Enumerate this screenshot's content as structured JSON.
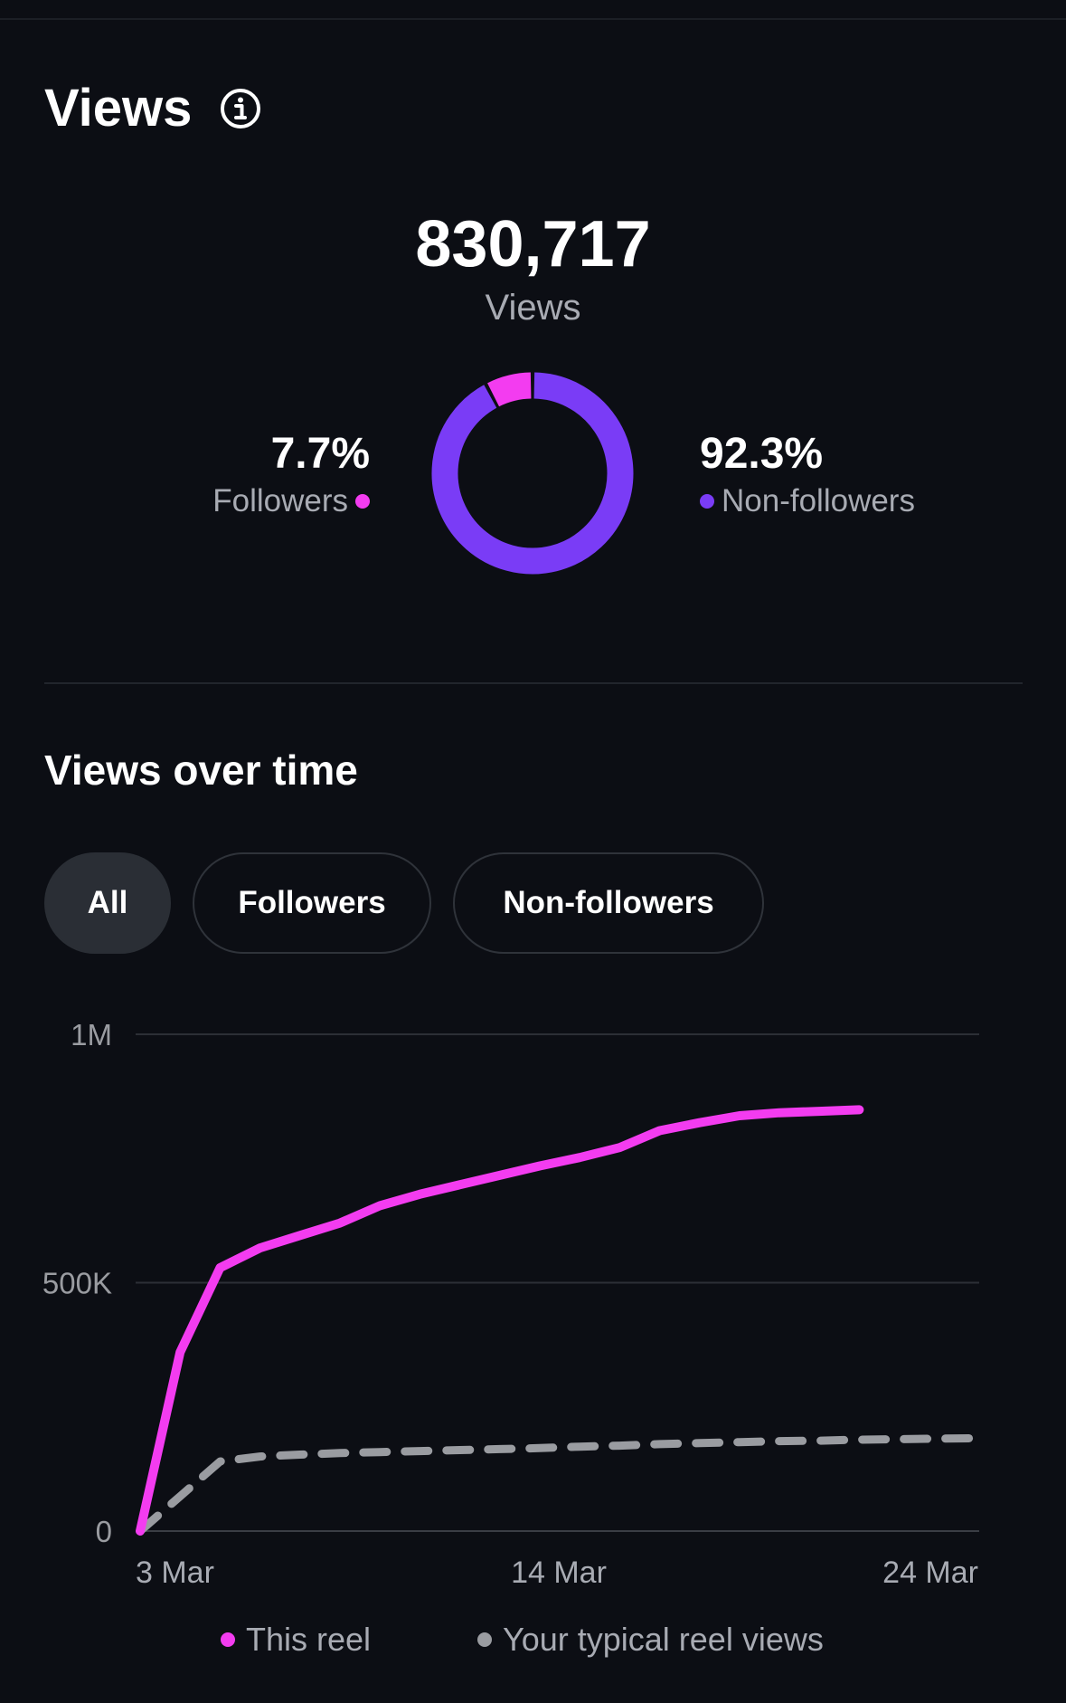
{
  "header": {
    "title": "Views",
    "info_icon": "info-circle-icon"
  },
  "summary": {
    "total_value": "830,717",
    "total_label": "Views"
  },
  "breakdown": {
    "followers": {
      "percent": "7.7%",
      "label": "Followers",
      "fraction": 0.077,
      "color": "#f33cf0"
    },
    "non_followers": {
      "percent": "92.3%",
      "label": "Non-followers",
      "fraction": 0.923,
      "color": "#7a3cf6"
    }
  },
  "views_over_time": {
    "title": "Views over time",
    "filters": [
      {
        "label": "All",
        "active": true
      },
      {
        "label": "Followers",
        "active": false
      },
      {
        "label": "Non-followers",
        "active": false
      }
    ]
  },
  "chart_data": {
    "type": "line",
    "x_tick_labels": [
      "3 Mar",
      "14 Mar",
      "24 Mar"
    ],
    "y_tick_labels": [
      "1M",
      "500K",
      "0"
    ],
    "ylim": [
      0,
      1000000
    ],
    "xlim": [
      3,
      24
    ],
    "grid": true,
    "legend_placement": "bottom",
    "series": [
      {
        "name": "This reel",
        "color": "#f33cf0",
        "style": "solid",
        "x": [
          3,
          4,
          5,
          6,
          7,
          8,
          9,
          10,
          11,
          12,
          13,
          14,
          15,
          16,
          17,
          18,
          19,
          20,
          21
        ],
        "y": [
          0,
          360000,
          530000,
          570000,
          595000,
          620000,
          655000,
          678000,
          697000,
          716000,
          735000,
          752000,
          772000,
          806000,
          822000,
          836000,
          842000,
          845000,
          848000
        ]
      },
      {
        "name": "Your typical reel views",
        "color": "#9a9ca1",
        "style": "dashed",
        "x": [
          3,
          4,
          5,
          6,
          7,
          8,
          9,
          10,
          11,
          12,
          13,
          14,
          15,
          16,
          17,
          18,
          19,
          20,
          21,
          22,
          23,
          24
        ],
        "y": [
          0,
          70000,
          140000,
          150000,
          154000,
          157000,
          159000,
          161000,
          163000,
          165000,
          167000,
          170000,
          172000,
          175000,
          177000,
          179000,
          181000,
          182000,
          184000,
          185000,
          186000,
          187000
        ]
      }
    ]
  }
}
